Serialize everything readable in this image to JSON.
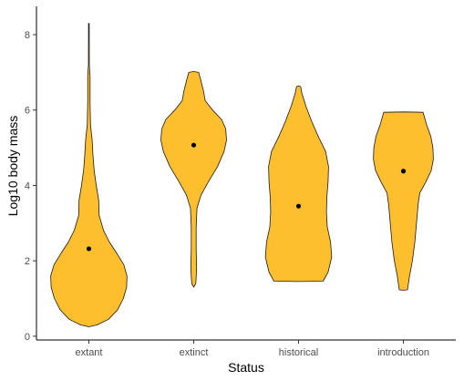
{
  "chart_data": {
    "type": "violin",
    "xlabel": "Status",
    "ylabel": "Log10 body mass",
    "ylim": [
      -0.1,
      8.75
    ],
    "yticks": [
      0,
      2,
      4,
      6,
      8
    ],
    "grid": false,
    "fill_color": "#FDBF2D",
    "outline_color": "#1a1a1a",
    "point_color": "#000000",
    "categories": [
      "extant",
      "extinct",
      "historical",
      "introduction"
    ],
    "violins": [
      {
        "category": "extant",
        "mean": 2.32,
        "profile": [
          [
            0.25,
            0.0
          ],
          [
            0.3,
            0.2
          ],
          [
            0.45,
            0.48
          ],
          [
            0.7,
            0.7
          ],
          [
            1.0,
            0.84
          ],
          [
            1.3,
            0.92
          ],
          [
            1.6,
            0.93
          ],
          [
            1.9,
            0.85
          ],
          [
            2.2,
            0.68
          ],
          [
            2.5,
            0.5
          ],
          [
            2.8,
            0.36
          ],
          [
            3.2,
            0.25
          ],
          [
            3.6,
            0.24
          ],
          [
            4.0,
            0.18
          ],
          [
            4.4,
            0.13
          ],
          [
            4.8,
            0.1
          ],
          [
            5.2,
            0.08
          ],
          [
            5.6,
            0.04
          ],
          [
            6.2,
            0.03
          ],
          [
            6.9,
            0.03
          ],
          [
            7.2,
            0.01
          ],
          [
            8.3,
            0.008
          ]
        ]
      },
      {
        "category": "extinct",
        "mean": 5.07,
        "profile": [
          [
            1.3,
            0.0
          ],
          [
            1.4,
            0.05
          ],
          [
            1.8,
            0.07
          ],
          [
            2.3,
            0.06
          ],
          [
            2.9,
            0.06
          ],
          [
            3.4,
            0.08
          ],
          [
            3.75,
            0.18
          ],
          [
            4.1,
            0.36
          ],
          [
            4.5,
            0.58
          ],
          [
            4.9,
            0.74
          ],
          [
            5.2,
            0.8
          ],
          [
            5.5,
            0.78
          ],
          [
            5.75,
            0.68
          ],
          [
            6.0,
            0.46
          ],
          [
            6.25,
            0.28
          ],
          [
            6.5,
            0.24
          ],
          [
            6.8,
            0.17
          ],
          [
            7.0,
            0.12
          ],
          [
            7.02,
            0.0
          ]
        ]
      },
      {
        "category": "historical",
        "mean": 3.45,
        "profile": [
          [
            1.45,
            0.0
          ],
          [
            1.46,
            0.6
          ],
          [
            1.7,
            0.72
          ],
          [
            2.1,
            0.81
          ],
          [
            2.5,
            0.78
          ],
          [
            2.9,
            0.7
          ],
          [
            3.3,
            0.68
          ],
          [
            3.7,
            0.69
          ],
          [
            4.1,
            0.72
          ],
          [
            4.5,
            0.73
          ],
          [
            4.9,
            0.66
          ],
          [
            5.3,
            0.48
          ],
          [
            5.7,
            0.32
          ],
          [
            6.1,
            0.18
          ],
          [
            6.45,
            0.08
          ],
          [
            6.62,
            0.05
          ],
          [
            6.64,
            0.0
          ]
        ]
      },
      {
        "category": "introduction",
        "mean": 4.38,
        "profile": [
          [
            1.22,
            0.0
          ],
          [
            1.23,
            0.1
          ],
          [
            1.6,
            0.15
          ],
          [
            2.0,
            0.22
          ],
          [
            2.5,
            0.28
          ],
          [
            3.0,
            0.32
          ],
          [
            3.5,
            0.36
          ],
          [
            3.8,
            0.4
          ],
          [
            4.1,
            0.55
          ],
          [
            4.4,
            0.68
          ],
          [
            4.7,
            0.73
          ],
          [
            5.0,
            0.72
          ],
          [
            5.3,
            0.67
          ],
          [
            5.6,
            0.57
          ],
          [
            5.94,
            0.48
          ],
          [
            5.95,
            0.0
          ]
        ]
      }
    ]
  }
}
